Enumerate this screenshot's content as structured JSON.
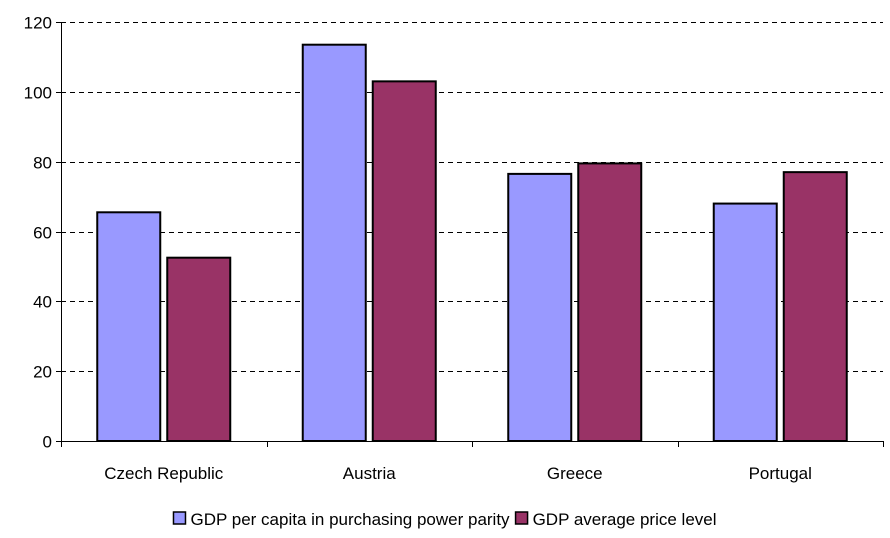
{
  "chart_data": {
    "type": "bar",
    "categories": [
      "Czech Republic",
      "Austria",
      "Greece",
      "Portugal"
    ],
    "series": [
      {
        "name": "GDP per capita in purchasing power parity",
        "values": [
          65.5,
          113.5,
          76.5,
          68
        ],
        "color": "#9999ff"
      },
      {
        "name": "GDP average price level",
        "values": [
          52.5,
          103,
          79.5,
          77
        ],
        "color": "#993366"
      }
    ],
    "ylim": [
      0,
      120
    ],
    "yticks": [
      0,
      20,
      40,
      60,
      80,
      100,
      120
    ],
    "ytick_labels": [
      "0",
      "20",
      "40",
      "60",
      "80",
      "100",
      "120"
    ],
    "grid": "dashed horizontal",
    "legend": "bottom",
    "title": "",
    "xlabel": "",
    "ylabel": ""
  }
}
